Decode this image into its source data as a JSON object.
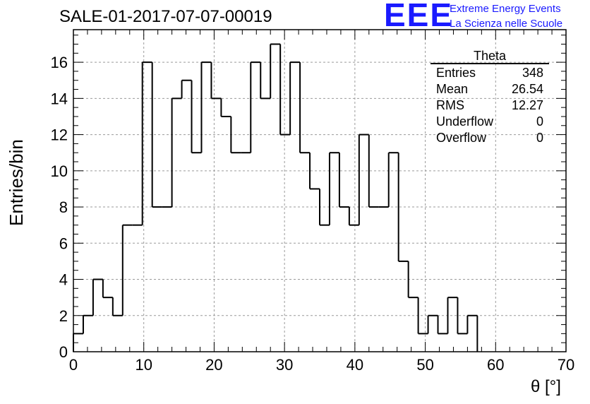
{
  "header": {
    "title": "SALE-01-2017-07-07-00019"
  },
  "logo": {
    "mark": "EEE",
    "line1": "Extreme Energy Events",
    "line2": "La Scienza nelle Scuole",
    "color": "#1a1aff"
  },
  "stats_box": {
    "name": "Theta",
    "rows": [
      {
        "label": "Entries",
        "value": "348"
      },
      {
        "label": "Mean",
        "value": "26.54"
      },
      {
        "label": "RMS",
        "value": "12.27"
      },
      {
        "label": "Underflow",
        "value": "0"
      },
      {
        "label": "Overflow",
        "value": "0"
      }
    ]
  },
  "chart_data": {
    "type": "bar",
    "style": "step-histogram",
    "xlabel": "θ [°]",
    "ylabel": "Entries/bin",
    "xlim": [
      0,
      70
    ],
    "ylim": [
      0,
      17.8
    ],
    "bin_width": 1.4,
    "x_ticks": [
      0,
      10,
      20,
      30,
      40,
      50,
      60,
      70
    ],
    "y_ticks": [
      0,
      2,
      4,
      6,
      8,
      10,
      12,
      14,
      16
    ],
    "grid": true,
    "values": [
      1,
      2,
      4,
      3,
      2,
      7,
      7,
      16,
      8,
      8,
      14,
      15,
      11,
      16,
      14,
      13,
      11,
      11,
      16,
      14,
      17,
      12,
      16,
      11,
      9,
      7,
      11,
      8,
      7,
      12,
      8,
      8,
      11,
      5,
      3,
      1,
      2,
      1,
      3,
      1,
      2
    ]
  }
}
